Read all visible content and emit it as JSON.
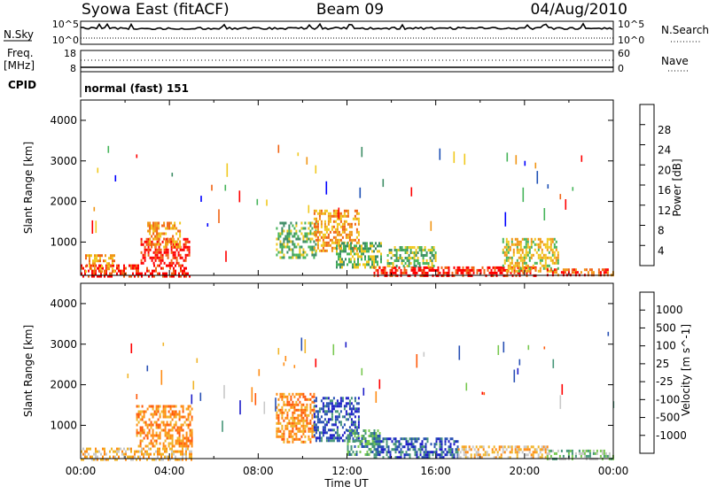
{
  "header": {
    "station": "Syowa East (fitACF)",
    "beam": "Beam 09",
    "date": "04/Aug/2010"
  },
  "top_panels": {
    "nsky_label": "N.Sky",
    "nsearch_label": "N.Search",
    "nsky_ticks": [
      "10^5",
      "10^0"
    ],
    "nsearch_ticks": [
      "10^5",
      "10^0"
    ],
    "freq_label": "Freq.",
    "freq_unit": "[MHz]",
    "freq_ticks": [
      "18",
      "8"
    ],
    "nave_label": "Nave",
    "nave_ticks": [
      "60",
      "0"
    ],
    "cpid_label": "CPID",
    "cpid_text": "normal (fast) 151"
  },
  "colors": {
    "power": [
      "#0000ff",
      "#1e50b4",
      "#3c8c64",
      "#46b45a",
      "#f0c81e",
      "#f09614",
      "#f06414",
      "#ff0000"
    ],
    "velocity": [
      "#ff0000",
      "#ff5a0a",
      "#ff8c14",
      "#f0b428",
      "#c8c8c8",
      "#78c850",
      "#469678",
      "#2850b4",
      "#1e1ec8"
    ]
  },
  "chart_data": [
    {
      "type": "heatmap",
      "name": "power",
      "ylabel": "Slant Range [km]",
      "xlabel": "Time UT",
      "xlim": [
        0,
        24
      ],
      "ylim": [
        180,
        4500
      ],
      "x_ticks": [
        "00:00",
        "04:00",
        "08:00",
        "12:00",
        "16:00",
        "20:00",
        "00:00"
      ],
      "y_ticks": [
        "1000",
        "2000",
        "3000",
        "4000"
      ],
      "colorbar_label": "Power [dB]",
      "colorbar_ticks": [
        "4",
        "8",
        "12",
        "16",
        "20",
        "24",
        "28"
      ],
      "regions": [
        {
          "t": [
            0.0,
            4.9
          ],
          "r": [
            180,
            450
          ],
          "level": 7
        },
        {
          "t": [
            0.2,
            1.5
          ],
          "r": [
            300,
            700
          ],
          "level": 5
        },
        {
          "t": [
            2.7,
            4.9
          ],
          "r": [
            500,
            1100
          ],
          "level": 7
        },
        {
          "t": [
            3.0,
            4.5
          ],
          "r": [
            900,
            1500
          ],
          "level": 5
        },
        {
          "t": [
            8.8,
            10.6
          ],
          "r": [
            600,
            1500
          ],
          "level": 3
        },
        {
          "t": [
            10.5,
            12.5
          ],
          "r": [
            800,
            1800
          ],
          "level": 5
        },
        {
          "t": [
            11.5,
            13.5
          ],
          "r": [
            400,
            1000
          ],
          "level": 3
        },
        {
          "t": [
            13.2,
            20.5
          ],
          "r": [
            180,
            400
          ],
          "level": 7
        },
        {
          "t": [
            13.8,
            16.0
          ],
          "r": [
            400,
            900
          ],
          "level": 3
        },
        {
          "t": [
            19.0,
            21.5
          ],
          "r": [
            300,
            1100
          ],
          "level": 4
        },
        {
          "t": [
            21.0,
            24.0
          ],
          "r": [
            180,
            350
          ],
          "level": 6
        }
      ],
      "speckle": [
        {
          "t": [
            0.5,
            24.0
          ],
          "r": [
            1400,
            3400
          ],
          "density": 0.05
        },
        {
          "t": [
            5.0,
            9.0
          ],
          "r": [
            600,
            2500
          ],
          "density": 0.04
        }
      ]
    },
    {
      "type": "heatmap",
      "name": "velocity",
      "ylabel": "Slant Range [km]",
      "xlabel": "Time UT",
      "xlim": [
        0,
        24
      ],
      "ylim": [
        180,
        4500
      ],
      "x_ticks": [
        "00:00",
        "04:00",
        "08:00",
        "12:00",
        "16:00",
        "20:00",
        "00:00"
      ],
      "y_ticks": [
        "1000",
        "2000",
        "3000",
        "4000"
      ],
      "colorbar_label": "Velocity [m s^-1]",
      "colorbar_ticks": [
        "1000",
        "500",
        "100",
        "25",
        "-25",
        "-100",
        "-500",
        "-1000"
      ],
      "regions": [
        {
          "t": [
            0.0,
            5.0
          ],
          "r": [
            180,
            450
          ],
          "level": 3
        },
        {
          "t": [
            2.5,
            5.0
          ],
          "r": [
            500,
            1500
          ],
          "level": 2
        },
        {
          "t": [
            8.8,
            10.5
          ],
          "r": [
            600,
            1800
          ],
          "level": 2
        },
        {
          "t": [
            10.5,
            12.5
          ],
          "r": [
            600,
            1700
          ],
          "level": 7
        },
        {
          "t": [
            12.0,
            13.5
          ],
          "r": [
            300,
            900
          ],
          "level": 6
        },
        {
          "t": [
            13.2,
            17.0
          ],
          "r": [
            180,
            700
          ],
          "level": 7
        },
        {
          "t": [
            17.0,
            21.0
          ],
          "r": [
            180,
            500
          ],
          "level": 3
        },
        {
          "t": [
            21.0,
            24.0
          ],
          "r": [
            180,
            400
          ],
          "level": 5
        }
      ],
      "speckle": [
        {
          "t": [
            0.5,
            24.0
          ],
          "r": [
            1400,
            3400
          ],
          "density": 0.05
        },
        {
          "t": [
            5.0,
            9.0
          ],
          "r": [
            600,
            2500
          ],
          "density": 0.04
        }
      ]
    }
  ]
}
